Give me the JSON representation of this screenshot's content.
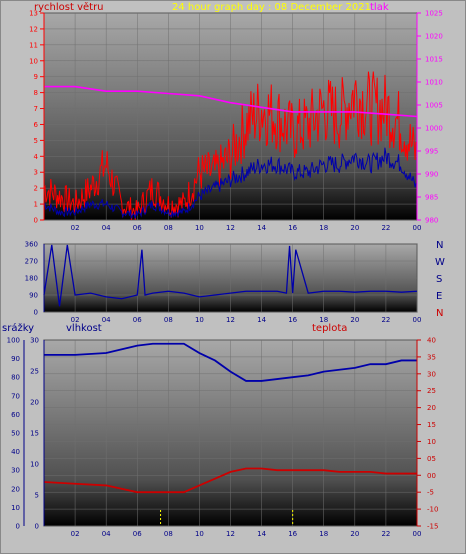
{
  "header": {
    "wind_label": "rychlost větru",
    "title": "24 hour graph day : 08 December 2021",
    "pressure_label": "tlak"
  },
  "lower_header": {
    "rain_label": "srážky",
    "humidity_label": "vlhkost",
    "temp_label": "teplota"
  },
  "compass": [
    "N",
    "W",
    "S",
    "E",
    "N"
  ],
  "colors": {
    "wind": "#ff0000",
    "gust": "#0000aa",
    "pressure": "#ff00ff",
    "direction": "#0000aa",
    "humidity": "#0000aa",
    "temperature": "#cc0000",
    "rain": "#ffff00"
  },
  "chart_data": [
    {
      "type": "line",
      "name": "wind-pressure",
      "x_ticks": [
        "02",
        "04",
        "06",
        "08",
        "10",
        "12",
        "14",
        "16",
        "18",
        "20",
        "22",
        "00"
      ],
      "y_left_ticks": [
        "0",
        "1",
        "2",
        "3",
        "4",
        "5",
        "6",
        "7",
        "8",
        "9",
        "10",
        "11",
        "12",
        "13"
      ],
      "y_left_range": [
        0,
        13
      ],
      "y_right_ticks": [
        "980",
        "985",
        "990",
        "995",
        "1000",
        "1005",
        "1010",
        "1015",
        "1020",
        "1025"
      ],
      "y_right_range": [
        980,
        1025
      ],
      "x_range_hours": [
        0,
        24
      ],
      "series": [
        {
          "key": "wind",
          "axis": "left",
          "hours": [
            0,
            1,
            2,
            3,
            4,
            5,
            6,
            7,
            8,
            9,
            10,
            11,
            12,
            13,
            14,
            15,
            16,
            17,
            18,
            19,
            20,
            21,
            22,
            23,
            24
          ],
          "values": [
            2,
            1.5,
            1,
            2,
            3.5,
            1,
            0.5,
            2,
            1,
            1,
            3,
            3,
            4,
            6,
            7,
            6.5,
            5.5,
            6,
            7,
            6.5,
            8,
            7,
            7,
            6,
            4
          ]
        },
        {
          "key": "gust",
          "axis": "left",
          "hours": [
            0,
            1,
            2,
            3,
            4,
            5,
            6,
            7,
            8,
            9,
            10,
            11,
            12,
            13,
            14,
            15,
            16,
            17,
            18,
            19,
            20,
            21,
            22,
            23,
            24
          ],
          "values": [
            1,
            0.5,
            0.5,
            1,
            1,
            0.5,
            0.3,
            1,
            0.5,
            0.5,
            1.5,
            2,
            2.5,
            3,
            3.5,
            3.5,
            3,
            3,
            3.5,
            3.5,
            4,
            3.5,
            4,
            3.5,
            2
          ]
        },
        {
          "key": "pressure",
          "axis": "right",
          "hours": [
            0,
            2,
            4,
            6,
            8,
            10,
            12,
            14,
            16,
            18,
            20,
            22,
            24
          ],
          "values": [
            1009,
            1009,
            1008,
            1008,
            1007.5,
            1007,
            1005.5,
            1004.5,
            1003.5,
            1003.5,
            1003.5,
            1003,
            1002.5
          ]
        }
      ]
    },
    {
      "type": "line",
      "name": "wind-direction",
      "y_ticks": [
        "0",
        "90",
        "180",
        "270",
        "360"
      ],
      "y_range": [
        0,
        360
      ],
      "x_ticks": [
        "02",
        "04",
        "06",
        "08",
        "10",
        "12",
        "14",
        "16",
        "18",
        "20",
        "22",
        "00"
      ],
      "series": [
        {
          "key": "direction",
          "hours": [
            0,
            0.5,
            1,
            1.5,
            2,
            3,
            4,
            5,
            6,
            6.3,
            6.5,
            7,
            8,
            9,
            10,
            11,
            12,
            13,
            14,
            15,
            15.6,
            15.8,
            16,
            16.2,
            17,
            18,
            19,
            20,
            21,
            22,
            23,
            24
          ],
          "values": [
            90,
            355,
            30,
            355,
            90,
            100,
            80,
            70,
            90,
            330,
            90,
            100,
            110,
            100,
            80,
            90,
            100,
            110,
            110,
            110,
            100,
            350,
            100,
            330,
            100,
            110,
            110,
            105,
            110,
            110,
            105,
            110
          ]
        }
      ]
    },
    {
      "type": "line",
      "name": "humidity-temperature-rain",
      "x_ticks": [
        "02",
        "04",
        "06",
        "08",
        "10",
        "12",
        "14",
        "16",
        "18",
        "20",
        "22",
        "00"
      ],
      "y_rain_ticks": [
        "0",
        "10",
        "20",
        "30",
        "40",
        "50",
        "60",
        "70",
        "80",
        "90",
        "100"
      ],
      "y_rain_range": [
        0,
        100
      ],
      "y_humidity_ticks": [
        "0",
        "5",
        "10",
        "15",
        "20",
        "25",
        "30"
      ],
      "y_humidity_range": [
        0,
        30
      ],
      "y_temp_ticks": [
        "-15",
        "-10",
        "-5",
        "00",
        "05",
        "10",
        "15",
        "20",
        "25",
        "30",
        "35",
        "40"
      ],
      "y_temp_range": [
        -15,
        40
      ],
      "series": [
        {
          "key": "humidity",
          "hours": [
            0,
            2,
            4,
            6,
            7,
            8,
            9,
            10,
            11,
            12,
            13,
            14,
            15,
            16,
            17,
            18,
            19,
            20,
            21,
            22,
            23,
            24
          ],
          "values": [
            92,
            92,
            93,
            97,
            98,
            98,
            98,
            93,
            89,
            83,
            78,
            78,
            79,
            80,
            81,
            83,
            84,
            85,
            87,
            87,
            89,
            89
          ]
        },
        {
          "key": "temperature",
          "hours": [
            0,
            2,
            4,
            6,
            7,
            8,
            9,
            10,
            11,
            12,
            13,
            14,
            15,
            16,
            17,
            18,
            19,
            20,
            21,
            22,
            23,
            24
          ],
          "values": [
            -2,
            -2.5,
            -3,
            -5,
            -5,
            -5,
            -5,
            -3,
            -1,
            1,
            2,
            2,
            1.5,
            1.5,
            1.5,
            1.5,
            1,
            1,
            1,
            0.5,
            0.5,
            0.5
          ]
        },
        {
          "key": "rain",
          "hours": [
            7.5,
            16
          ],
          "values": [
            0,
            0
          ]
        }
      ]
    }
  ]
}
